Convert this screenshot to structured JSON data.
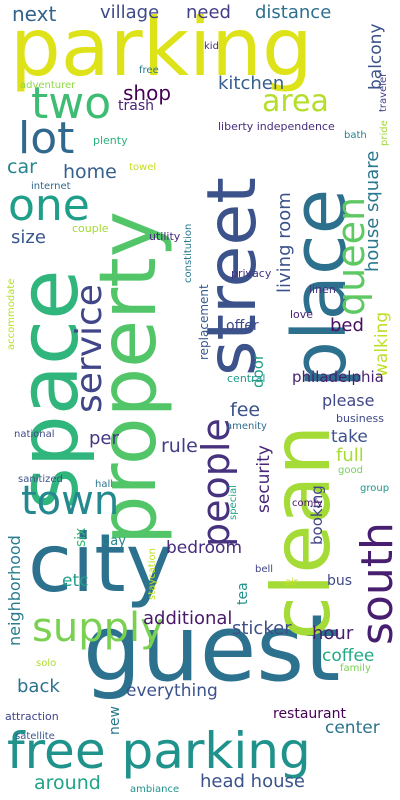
{
  "words": [
    {
      "text": "parking",
      "color": "#dde318"
    },
    {
      "text": "guest",
      "color": "#2c728e"
    },
    {
      "text": "property",
      "color": "#52c569"
    },
    {
      "text": "clean",
      "color": "#a5db36"
    },
    {
      "text": "space",
      "color": "#30b57c"
    },
    {
      "text": "city",
      "color": "#2c728e"
    },
    {
      "text": "place",
      "color": "#2d708e"
    },
    {
      "text": "street",
      "color": "#3b528b"
    },
    {
      "text": "free parking",
      "color": "#20928c"
    },
    {
      "text": "two",
      "color": "#3fbc73"
    },
    {
      "text": "lot",
      "color": "#31688e"
    },
    {
      "text": "one",
      "color": "#1f9e89"
    },
    {
      "text": "south",
      "color": "#481f70"
    },
    {
      "text": "people",
      "color": "#46327e"
    },
    {
      "text": "town",
      "color": "#23898e"
    },
    {
      "text": "supply",
      "color": "#7ad151"
    },
    {
      "text": "service",
      "color": "#404688"
    },
    {
      "text": "queen",
      "color": "#5ec962"
    },
    {
      "text": "area",
      "color": "#b5de2b"
    },
    {
      "text": "next",
      "color": "#33638d"
    },
    {
      "text": "village",
      "color": "#3e4a89"
    },
    {
      "text": "need",
      "color": "#433e85"
    },
    {
      "text": "distance",
      "color": "#2d708e"
    },
    {
      "text": "balcony",
      "color": "#3b528b"
    },
    {
      "text": "kid",
      "color": "#482878"
    },
    {
      "text": "adventurer",
      "color": "#8fd744"
    },
    {
      "text": "free",
      "color": "#2a788e"
    },
    {
      "text": "traveler",
      "color": "#414487"
    },
    {
      "text": "shop",
      "color": "#440154"
    },
    {
      "text": "kitchen",
      "color": "#355f8d"
    },
    {
      "text": "trash",
      "color": "#482475"
    },
    {
      "text": "liberty independence",
      "color": "#472d7b"
    },
    {
      "text": "pride",
      "color": "#a0da39"
    },
    {
      "text": "bath",
      "color": "#26828e"
    },
    {
      "text": "plenty",
      "color": "#2db27d"
    },
    {
      "text": "car",
      "color": "#25848e"
    },
    {
      "text": "home",
      "color": "#355f8d"
    },
    {
      "text": "towel",
      "color": "#c8e020"
    },
    {
      "text": "house square",
      "color": "#2a788e"
    },
    {
      "text": "internet",
      "color": "#31688e"
    },
    {
      "text": "fitness",
      "color": "#b8de29"
    },
    {
      "text": "size",
      "color": "#39568c"
    },
    {
      "text": "couple",
      "color": "#a2da37"
    },
    {
      "text": "utility",
      "color": "#472a7a"
    },
    {
      "text": "constitution",
      "color": "#2a788e"
    },
    {
      "text": "living room",
      "color": "#3b528b"
    },
    {
      "text": "privacy",
      "color": "#46327e"
    },
    {
      "text": "linen",
      "color": "#463480"
    },
    {
      "text": "accommodate",
      "color": "#b5de2b"
    },
    {
      "text": "replacement",
      "color": "#38598c"
    },
    {
      "text": "bed",
      "color": "#470e61"
    },
    {
      "text": "walking",
      "color": "#bddf26"
    },
    {
      "text": "love",
      "color": "#482173"
    },
    {
      "text": "offer",
      "color": "#3e4989"
    },
    {
      "text": "central",
      "color": "#1f9a8a"
    },
    {
      "text": "door",
      "color": "#1e9d89"
    },
    {
      "text": "philadelphia",
      "color": "#482071"
    },
    {
      "text": "fee",
      "color": "#3b528b"
    },
    {
      "text": "please",
      "color": "#3f4788"
    },
    {
      "text": "business",
      "color": "#3e4989"
    },
    {
      "text": "amenity",
      "color": "#2e6e8e"
    },
    {
      "text": "national",
      "color": "#3e4989"
    },
    {
      "text": "per",
      "color": "#453781"
    },
    {
      "text": "rule",
      "color": "#433e85"
    },
    {
      "text": "take",
      "color": "#3b528b"
    },
    {
      "text": "full",
      "color": "#a8db34"
    },
    {
      "text": "good",
      "color": "#73d056"
    },
    {
      "text": "security",
      "color": "#482576"
    },
    {
      "text": "booking",
      "color": "#404588"
    },
    {
      "text": "hall",
      "color": "#2b758e"
    },
    {
      "text": "sanitized",
      "color": "#3b528b"
    },
    {
      "text": "special",
      "color": "#21a585"
    },
    {
      "text": "group",
      "color": "#1f968b"
    },
    {
      "text": "comfy",
      "color": "#481467"
    },
    {
      "text": "six",
      "color": "#38b977"
    },
    {
      "text": "neighborhood",
      "color": "#287c8e"
    },
    {
      "text": "bedroom",
      "color": "#472d7b"
    },
    {
      "text": "day",
      "color": "#26828e"
    },
    {
      "text": "staycation",
      "color": "#c0df25"
    },
    {
      "text": "bell",
      "color": "#404588"
    },
    {
      "text": "air",
      "color": "#c5e021"
    },
    {
      "text": "bus",
      "color": "#3f4788"
    },
    {
      "text": "etc",
      "color": "#1f9e89"
    },
    {
      "text": "tea",
      "color": "#20928c"
    },
    {
      "text": "additional",
      "color": "#48186a"
    },
    {
      "text": "sticker",
      "color": "#3d4e8a"
    },
    {
      "text": "hour",
      "color": "#481f70"
    },
    {
      "text": "back",
      "color": "#2c728e"
    },
    {
      "text": "coffee",
      "color": "#22a884"
    },
    {
      "text": "solo",
      "color": "#addc30"
    },
    {
      "text": "family",
      "color": "#7ad151"
    },
    {
      "text": "everything",
      "color": "#3b528b"
    },
    {
      "text": "restaurant",
      "color": "#440154"
    },
    {
      "text": "attraction",
      "color": "#404588"
    },
    {
      "text": "satellite",
      "color": "#38598c"
    },
    {
      "text": "new",
      "color": "#2a788e"
    },
    {
      "text": "center",
      "color": "#2c728e"
    },
    {
      "text": "around",
      "color": "#20a386"
    },
    {
      "text": "head house",
      "color": "#3b528b"
    },
    {
      "text": "ambiance",
      "color": "#20928c"
    }
  ]
}
